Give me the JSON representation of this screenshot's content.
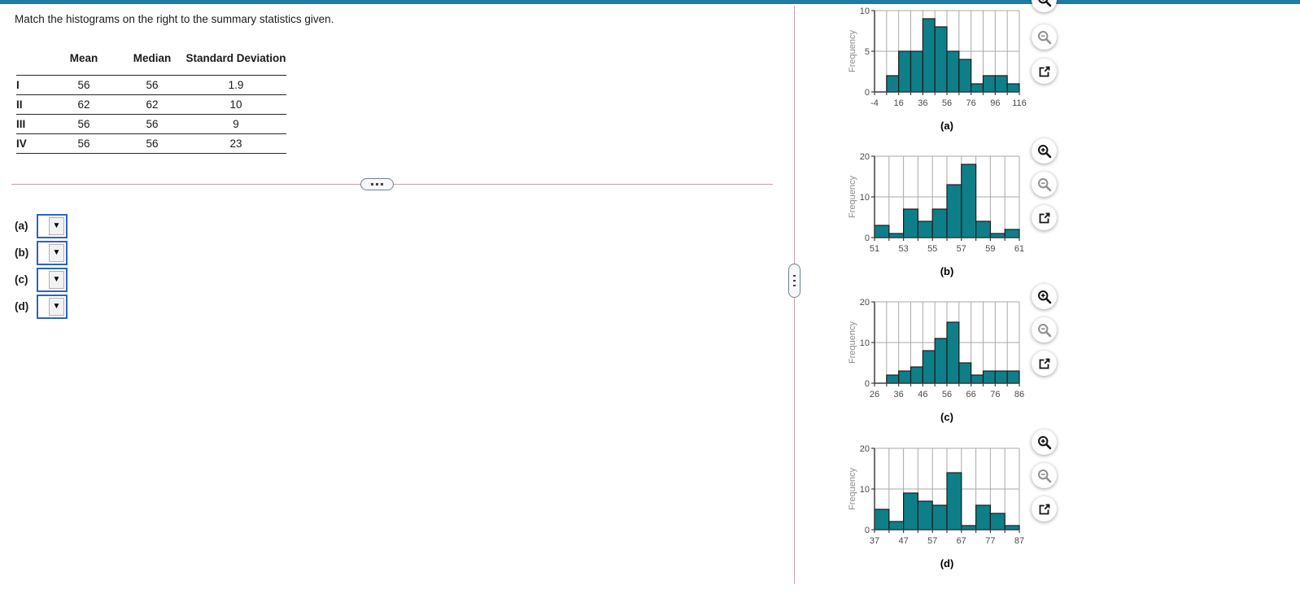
{
  "page": {
    "question": "Match the histograms on the right to the summary statistics given."
  },
  "theme": {
    "topbar": "#1e7ca6",
    "divider": "#c7a0ab",
    "bar_fill": "#0e7f88",
    "bar_stroke": "#1c1c1c",
    "grid": "#a9a9a9",
    "axis": "#3f3f3f",
    "tick_text": "#4a4a4a",
    "axis_label_text": "#8c8c8c",
    "dropdown_border": "#2e62c9"
  },
  "stats_table": {
    "headers": [
      "",
      "Mean",
      "Median",
      "Standard Deviation"
    ],
    "rows": [
      {
        "label": "I",
        "mean": "56",
        "median": "56",
        "sd": "1.9"
      },
      {
        "label": "II",
        "mean": "62",
        "median": "62",
        "sd": "10"
      },
      {
        "label": "III",
        "mean": "56",
        "median": "56",
        "sd": "9"
      },
      {
        "label": "IV",
        "mean": "56",
        "median": "56",
        "sd": "23"
      }
    ]
  },
  "answers": [
    {
      "label": "(a)",
      "value": ""
    },
    {
      "label": "(b)",
      "value": ""
    },
    {
      "label": "(c)",
      "value": ""
    },
    {
      "label": "(d)",
      "value": ""
    }
  ],
  "icons": {
    "zoom_in": "magnifier-plus",
    "zoom_out": "magnifier-minus",
    "open_external": "external-link",
    "dropdown": "down-triangle",
    "divider_handle_h": "horizontal-ellipsis",
    "divider_handle_v": "vertical-ellipsis"
  },
  "chart_data": [
    {
      "type": "bar",
      "subtype": "histogram",
      "title": "(a)",
      "ylabel": "Frequency",
      "xmin": -4,
      "xmax": 116,
      "bin_width": 10,
      "bars_start": 6,
      "values": [
        2,
        5,
        5,
        9,
        8,
        5,
        4,
        1,
        2,
        2,
        1
      ],
      "ymax": 10,
      "y_ticks": [
        0,
        5,
        10
      ],
      "x_tick_labels": [
        -4,
        16,
        36,
        56,
        76,
        96,
        116
      ]
    },
    {
      "type": "bar",
      "subtype": "histogram",
      "title": "(b)",
      "ylabel": "Frequency",
      "xmin": 51,
      "xmax": 61,
      "bin_width": 1,
      "bars_start": 51,
      "values": [
        3,
        1,
        7,
        4,
        7,
        13,
        18,
        4,
        1,
        2
      ],
      "ymax": 20,
      "y_ticks": [
        0,
        10,
        20
      ],
      "x_tick_labels": [
        51,
        53,
        55,
        57,
        59,
        61
      ]
    },
    {
      "type": "bar",
      "subtype": "histogram",
      "title": "(c)",
      "ylabel": "Frequency",
      "xmin": 26,
      "xmax": 86,
      "bin_width": 5,
      "bars_start": 31,
      "values": [
        2,
        3,
        4,
        8,
        11,
        15,
        5,
        2,
        3,
        3,
        3
      ],
      "ymax": 20,
      "y_ticks": [
        0,
        10,
        20
      ],
      "x_tick_labels": [
        26,
        36,
        46,
        56,
        66,
        76,
        86
      ]
    },
    {
      "type": "bar",
      "subtype": "histogram",
      "title": "(d)",
      "ylabel": "Frequency",
      "xmin": 37,
      "xmax": 87,
      "bin_width": 5,
      "bars_start": 37,
      "values": [
        5,
        2,
        9,
        7,
        6,
        14,
        1,
        6,
        4,
        1
      ],
      "ymax": 20,
      "y_ticks": [
        0,
        10,
        20
      ],
      "x_tick_labels": [
        37,
        47,
        57,
        67,
        77,
        87
      ]
    }
  ]
}
